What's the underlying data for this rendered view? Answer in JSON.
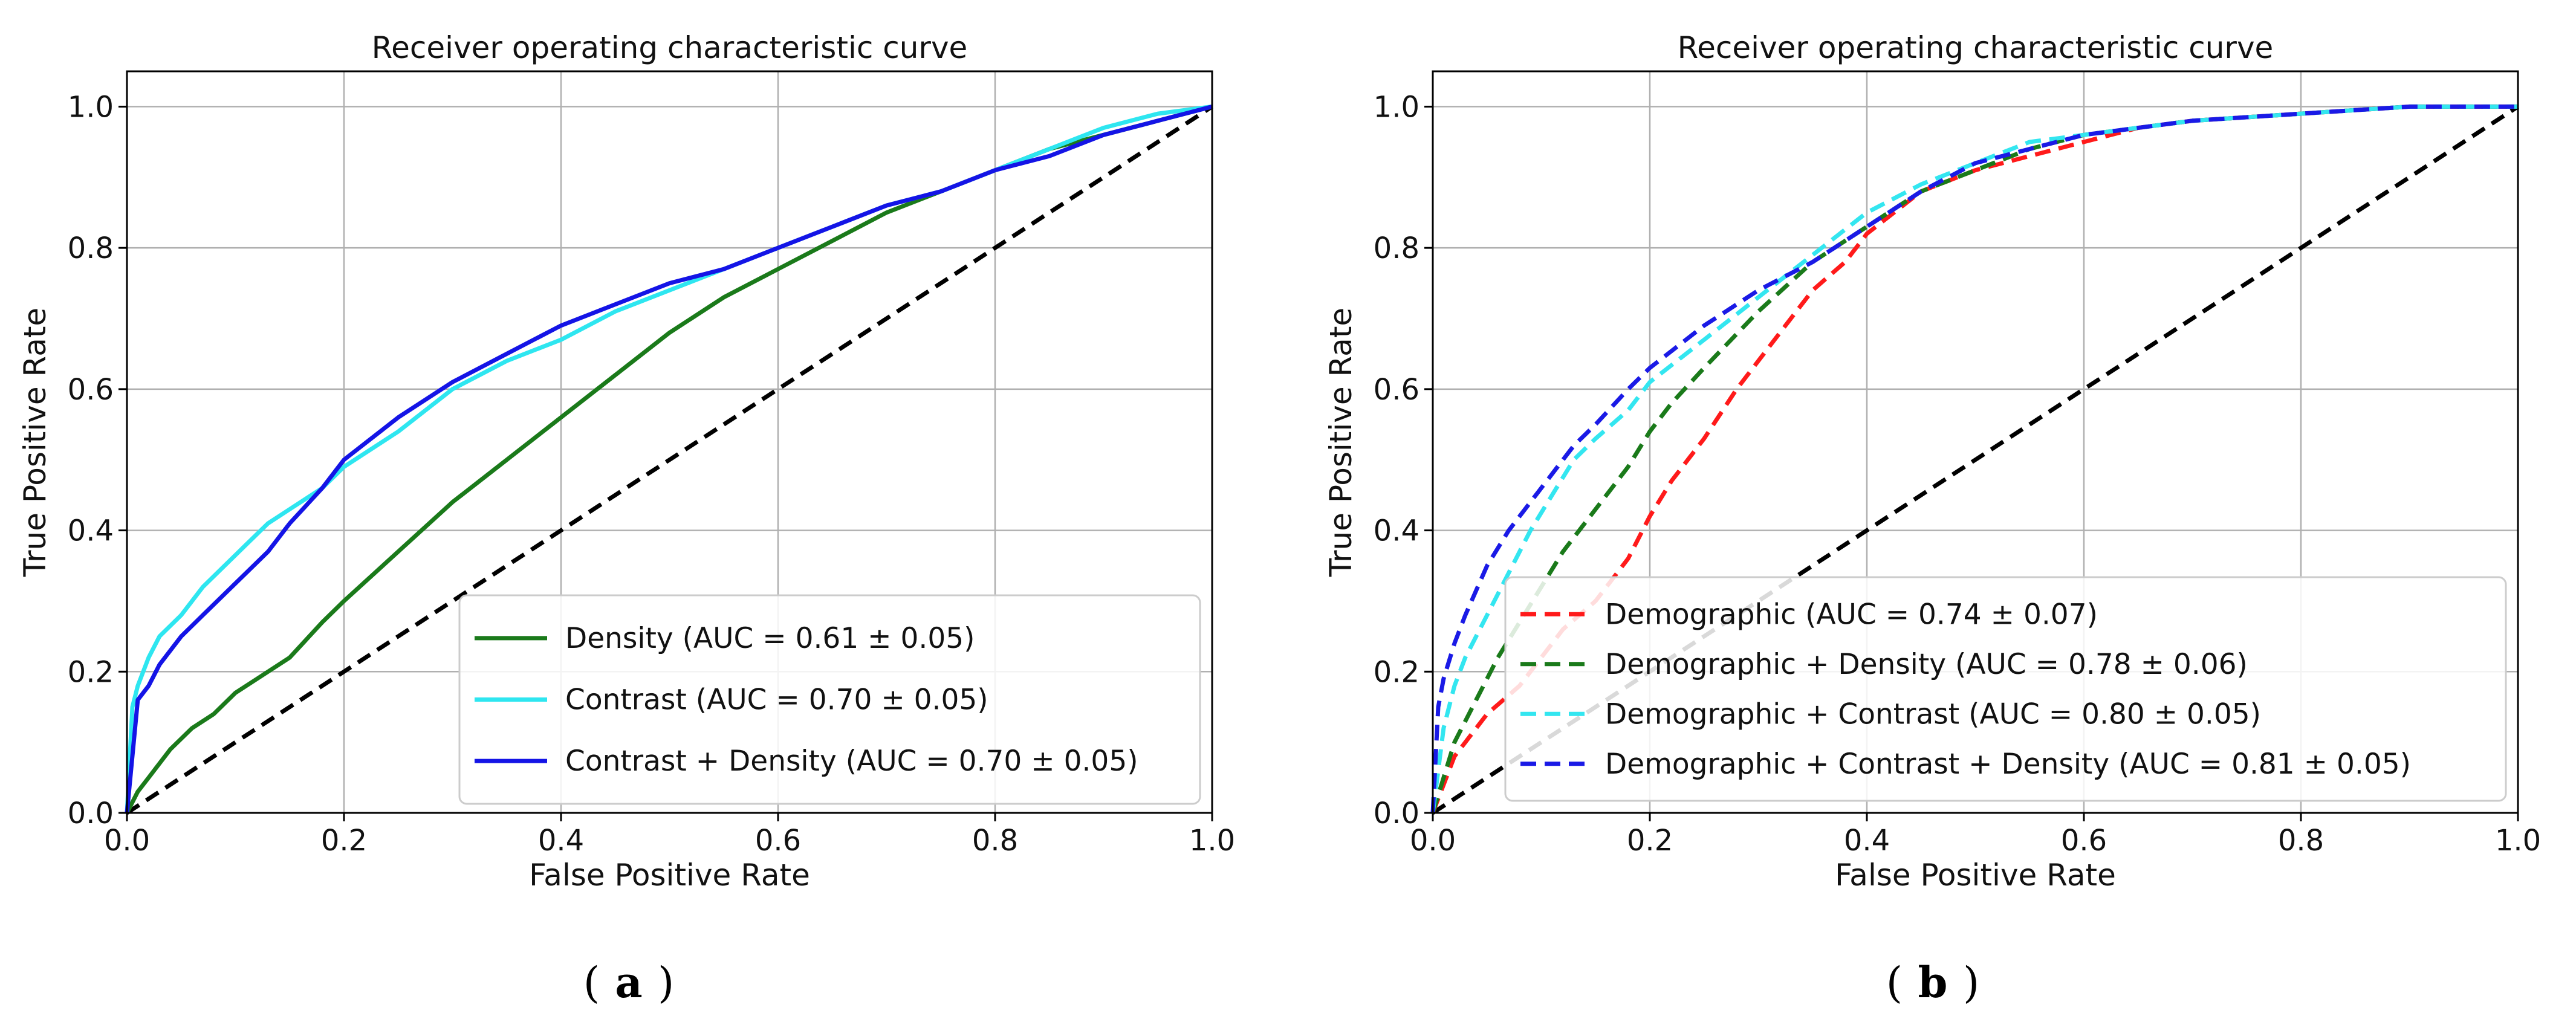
{
  "figure": {
    "panel_labels": [
      "a",
      "b"
    ]
  },
  "chart_data": [
    {
      "type": "line",
      "title": "Receiver operating characteristic curve",
      "xlabel": "False Positive Rate",
      "ylabel": "True Positive Rate",
      "xlim": [
        0.0,
        1.0
      ],
      "ylim": [
        0.0,
        1.05
      ],
      "xticks": [
        "0.0",
        "0.2",
        "0.4",
        "0.6",
        "0.8",
        "1.0"
      ],
      "yticks": [
        "0.0",
        "0.2",
        "0.4",
        "0.6",
        "0.8",
        "1.0"
      ],
      "grid": true,
      "legend_position": "lower-right",
      "diagonal": {
        "color": "#000000",
        "style": "dashed"
      },
      "series": [
        {
          "name": "Density (AUC = 0.61 ± 0.05)",
          "color": "#1a7a1a",
          "style": "solid",
          "x": [
            0,
            0.01,
            0.02,
            0.04,
            0.06,
            0.08,
            0.1,
            0.12,
            0.15,
            0.18,
            0.2,
            0.25,
            0.3,
            0.35,
            0.4,
            0.45,
            0.5,
            0.55,
            0.6,
            0.65,
            0.7,
            0.75,
            0.8,
            0.85,
            0.9,
            0.95,
            1.0
          ],
          "y": [
            0,
            0.03,
            0.05,
            0.09,
            0.12,
            0.14,
            0.17,
            0.19,
            0.22,
            0.27,
            0.3,
            0.37,
            0.44,
            0.5,
            0.56,
            0.62,
            0.68,
            0.73,
            0.77,
            0.81,
            0.85,
            0.88,
            0.91,
            0.94,
            0.96,
            0.98,
            1.0
          ]
        },
        {
          "name": "Contrast (AUC = 0.70 ± 0.05)",
          "color": "#2ee6f0",
          "style": "solid",
          "x": [
            0,
            0.005,
            0.01,
            0.02,
            0.03,
            0.05,
            0.07,
            0.09,
            0.11,
            0.13,
            0.15,
            0.18,
            0.2,
            0.25,
            0.3,
            0.35,
            0.4,
            0.45,
            0.5,
            0.55,
            0.6,
            0.65,
            0.7,
            0.75,
            0.8,
            0.85,
            0.9,
            0.95,
            1.0
          ],
          "y": [
            0,
            0.15,
            0.18,
            0.22,
            0.25,
            0.28,
            0.32,
            0.35,
            0.38,
            0.41,
            0.43,
            0.46,
            0.49,
            0.54,
            0.6,
            0.64,
            0.67,
            0.71,
            0.74,
            0.77,
            0.8,
            0.83,
            0.86,
            0.88,
            0.91,
            0.94,
            0.97,
            0.99,
            1.0
          ]
        },
        {
          "name": "Contrast + Density (AUC = 0.70 ± 0.05)",
          "color": "#1414e6",
          "style": "solid",
          "x": [
            0,
            0.01,
            0.02,
            0.03,
            0.05,
            0.07,
            0.09,
            0.11,
            0.13,
            0.15,
            0.18,
            0.2,
            0.25,
            0.3,
            0.35,
            0.4,
            0.45,
            0.5,
            0.55,
            0.6,
            0.65,
            0.7,
            0.75,
            0.8,
            0.85,
            0.9,
            0.95,
            1.0
          ],
          "y": [
            0,
            0.16,
            0.18,
            0.21,
            0.25,
            0.28,
            0.31,
            0.34,
            0.37,
            0.41,
            0.46,
            0.5,
            0.56,
            0.61,
            0.65,
            0.69,
            0.72,
            0.75,
            0.77,
            0.8,
            0.83,
            0.86,
            0.88,
            0.91,
            0.93,
            0.96,
            0.98,
            1.0
          ]
        }
      ]
    },
    {
      "type": "line",
      "title": "Receiver operating characteristic curve",
      "xlabel": "False Positive Rate",
      "ylabel": "True Positive Rate",
      "xlim": [
        0.0,
        1.0
      ],
      "ylim": [
        0.0,
        1.05
      ],
      "xticks": [
        "0.0",
        "0.2",
        "0.4",
        "0.6",
        "0.8",
        "1.0"
      ],
      "yticks": [
        "0.0",
        "0.2",
        "0.4",
        "0.6",
        "0.8",
        "1.0"
      ],
      "grid": true,
      "legend_position": "lower-right",
      "diagonal": {
        "color": "#000000",
        "style": "dashed"
      },
      "series": [
        {
          "name": "Demographic (AUC = 0.74 ± 0.07)",
          "color": "#ff1a1a",
          "style": "dashed",
          "x": [
            0,
            0.02,
            0.05,
            0.08,
            0.1,
            0.12,
            0.15,
            0.18,
            0.2,
            0.22,
            0.25,
            0.28,
            0.3,
            0.33,
            0.35,
            0.38,
            0.4,
            0.45,
            0.5,
            0.55,
            0.6,
            0.65,
            0.7,
            0.8,
            0.9,
            1.0
          ],
          "y": [
            0,
            0.08,
            0.14,
            0.18,
            0.22,
            0.26,
            0.3,
            0.36,
            0.42,
            0.47,
            0.53,
            0.6,
            0.64,
            0.7,
            0.74,
            0.78,
            0.82,
            0.88,
            0.91,
            0.93,
            0.95,
            0.97,
            0.98,
            0.99,
            1.0,
            1.0
          ]
        },
        {
          "name": "Demographic + Density (AUC = 0.78 ± 0.06)",
          "color": "#1a7a1a",
          "style": "dashed",
          "x": [
            0,
            0.02,
            0.04,
            0.06,
            0.08,
            0.1,
            0.12,
            0.15,
            0.18,
            0.2,
            0.22,
            0.25,
            0.3,
            0.35,
            0.4,
            0.45,
            0.5,
            0.55,
            0.6,
            0.7,
            0.8,
            0.9,
            1.0
          ],
          "y": [
            0,
            0.1,
            0.16,
            0.22,
            0.27,
            0.32,
            0.37,
            0.43,
            0.49,
            0.54,
            0.58,
            0.63,
            0.71,
            0.78,
            0.83,
            0.88,
            0.91,
            0.94,
            0.96,
            0.98,
            0.99,
            1.0,
            1.0
          ]
        },
        {
          "name": "Demographic + Contrast (AUC = 0.80 ± 0.05)",
          "color": "#33e6f0",
          "style": "dashed",
          "x": [
            0,
            0.01,
            0.02,
            0.03,
            0.05,
            0.07,
            0.09,
            0.11,
            0.13,
            0.15,
            0.18,
            0.2,
            0.25,
            0.3,
            0.35,
            0.4,
            0.45,
            0.5,
            0.55,
            0.6,
            0.7,
            0.8,
            0.9,
            1.0
          ],
          "y": [
            0,
            0.12,
            0.18,
            0.22,
            0.28,
            0.34,
            0.4,
            0.45,
            0.5,
            0.53,
            0.57,
            0.61,
            0.67,
            0.73,
            0.79,
            0.85,
            0.89,
            0.92,
            0.95,
            0.96,
            0.98,
            0.99,
            1.0,
            1.0
          ]
        },
        {
          "name": "Demographic + Contrast + Density (AUC = 0.81 ± 0.05)",
          "color": "#1a1ae6",
          "style": "dashed",
          "x": [
            0,
            0.005,
            0.01,
            0.02,
            0.03,
            0.05,
            0.07,
            0.09,
            0.11,
            0.13,
            0.15,
            0.18,
            0.2,
            0.25,
            0.3,
            0.35,
            0.4,
            0.45,
            0.5,
            0.55,
            0.6,
            0.7,
            0.8,
            0.9,
            1.0
          ],
          "y": [
            0,
            0.15,
            0.19,
            0.24,
            0.28,
            0.35,
            0.4,
            0.44,
            0.48,
            0.52,
            0.55,
            0.6,
            0.63,
            0.69,
            0.74,
            0.78,
            0.83,
            0.88,
            0.92,
            0.94,
            0.96,
            0.98,
            0.99,
            1.0,
            1.0
          ]
        }
      ]
    }
  ]
}
